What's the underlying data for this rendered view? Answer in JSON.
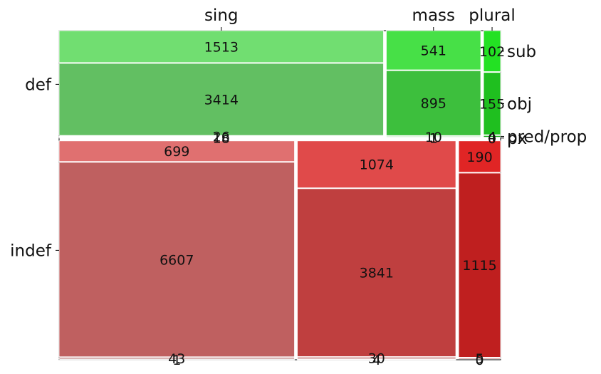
{
  "chart_data": {
    "type": "mosaic",
    "column_categories": [
      "sing",
      "mass",
      "plural"
    ],
    "row_categories": [
      "def",
      "indef"
    ],
    "role_categories": [
      "sub",
      "obj",
      "pred/prop",
      "px"
    ],
    "counts": {
      "sing": {
        "def": {
          "sub": 1513,
          "obj": 3414,
          "pred/prop": 26,
          "px": 18
        },
        "indef": {
          "sub": 699,
          "obj": 6607,
          "pred/prop": 43,
          "px": 1
        }
      },
      "mass": {
        "def": {
          "sub": 541,
          "obj": 895,
          "pred/prop": 10,
          "px": 1
        },
        "indef": {
          "sub": 1074,
          "obj": 3841,
          "pred/prop": 30,
          "px": 4
        }
      },
      "plural": {
        "def": {
          "sub": 102,
          "obj": 155,
          "pred/prop": 4,
          "px": 0
        },
        "indef": {
          "sub": 190,
          "obj": 1115,
          "pred/prop": 5,
          "px": 0
        }
      }
    },
    "colors": {
      "def": {
        "sing": [
          "#71de71",
          "#62bf62",
          "#4ea64e",
          "#3f8f3f"
        ],
        "mass": [
          "#47e047",
          "#3dbf3d",
          "#2fa82f",
          "#228f22"
        ],
        "plural": [
          "#23e123",
          "#1fbf1f",
          "#18a818",
          "#108f10"
        ]
      },
      "indef": {
        "sing": [
          "#e07070",
          "#bf6060",
          "#a84e4e",
          "#8f3f3f"
        ],
        "mass": [
          "#e04a4a",
          "#bf3f3f",
          "#a83232",
          "#8f2525"
        ],
        "plural": [
          "#e02525",
          "#bf1f1f",
          "#a81818",
          "#8f1010"
        ]
      }
    },
    "title": "",
    "xlabel": "",
    "ylabel": "",
    "grid": false,
    "legend": "none"
  }
}
